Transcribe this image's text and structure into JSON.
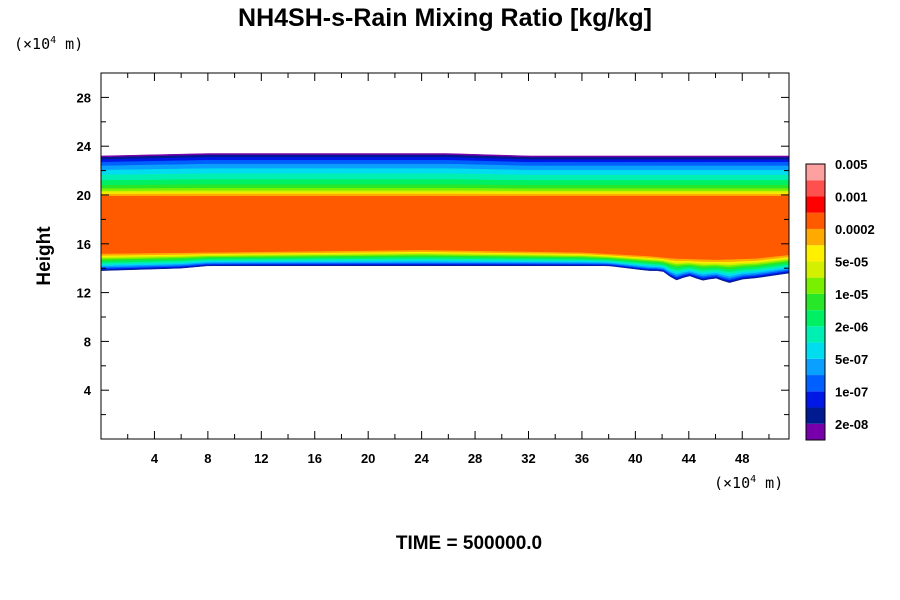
{
  "chart_data": {
    "type": "heatmap",
    "title": "NH4SH-s-Rain Mixing Ratio [kg/kg]",
    "ylabel": "Height",
    "x_unit": "(×10⁴ m)",
    "y_unit": "(×10⁴ m)",
    "time_label": "TIME = 500000.0",
    "xlim": [
      0,
      51.5
    ],
    "ylim": [
      0,
      30
    ],
    "x_ticks": [
      4,
      8,
      12,
      16,
      20,
      24,
      28,
      32,
      36,
      40,
      44,
      48
    ],
    "y_ticks": [
      4,
      8,
      12,
      16,
      20,
      24,
      28
    ],
    "colorbar": {
      "colors": [
        "#7700aa",
        "#001a90",
        "#0018e6",
        "#005fff",
        "#0aa0ff",
        "#00dcf0",
        "#00f0b4",
        "#00f064",
        "#28e628",
        "#78f000",
        "#d2f000",
        "#fff000",
        "#ffaa00",
        "#ff5a00",
        "#ff0000",
        "#ff5050",
        "#ffa0a0"
      ],
      "labels": [
        "2e-08",
        "1e-07",
        "5e-07",
        "2e-06",
        "1e-05",
        "5e-05",
        "0.0002",
        "0.001",
        "0.005"
      ]
    },
    "band": {
      "top": [
        [
          0,
          23.2
        ],
        [
          8,
          23.4
        ],
        [
          26,
          23.4
        ],
        [
          32,
          23.2
        ],
        [
          51.5,
          23.2
        ]
      ],
      "bottom": [
        [
          0,
          13.8
        ],
        [
          6,
          14.0
        ],
        [
          8,
          14.2
        ],
        [
          38,
          14.2
        ],
        [
          41,
          13.8
        ],
        [
          42,
          13.8
        ],
        [
          43,
          13.0
        ],
        [
          44,
          13.4
        ],
        [
          45,
          13.0
        ],
        [
          46,
          13.2
        ],
        [
          47,
          12.8
        ],
        [
          48,
          13.1
        ],
        [
          49,
          13.2
        ],
        [
          51.5,
          13.6
        ]
      ],
      "core_top": [
        [
          0,
          19.9
        ],
        [
          51.5,
          19.9
        ]
      ],
      "core_bottom": [
        [
          0,
          15.2
        ],
        [
          8,
          15.3
        ],
        [
          24,
          15.5
        ],
        [
          36,
          15.3
        ],
        [
          41,
          15.0
        ],
        [
          43,
          14.8
        ],
        [
          46,
          14.7
        ],
        [
          49,
          14.8
        ],
        [
          51.5,
          15.1
        ]
      ]
    }
  }
}
